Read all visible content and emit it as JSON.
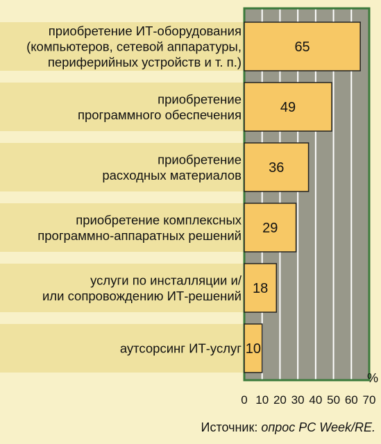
{
  "chart_data": {
    "type": "bar",
    "orientation": "horizontal",
    "categories": [
      [
        "приобретение ИТ-оборудования",
        "(компьютеров, сетевой аппаратуры,",
        "периферийных устройств и т. п.)"
      ],
      [
        "приобретение",
        "программного обеспечения"
      ],
      [
        "приобретение",
        "расходных материалов"
      ],
      [
        "приобретение комплексных",
        "программно-аппаратных решений"
      ],
      [
        "услуги по инсталляции и/",
        "или сопровождению ИТ-решений"
      ],
      [
        "аутсорсинг ИТ-услуг"
      ]
    ],
    "values": [
      65,
      49,
      36,
      29,
      18,
      10
    ],
    "xlim": [
      0,
      70
    ],
    "xticks": [
      "0",
      "10",
      "20",
      "30",
      "40",
      "50",
      "60",
      "70"
    ],
    "unit": "%",
    "grid": true
  },
  "source": {
    "prefix": "Источник: ",
    "text": "опрос PC Week/RE."
  },
  "colors": {
    "background": "#f8f1c8",
    "row_band": "#efe2a0",
    "plot_bg": "#98988a",
    "plot_border": "#3b7a3b",
    "bar_fill": "#f7c865",
    "bar_stroke": "#222222",
    "gridline": "#ffffff"
  }
}
